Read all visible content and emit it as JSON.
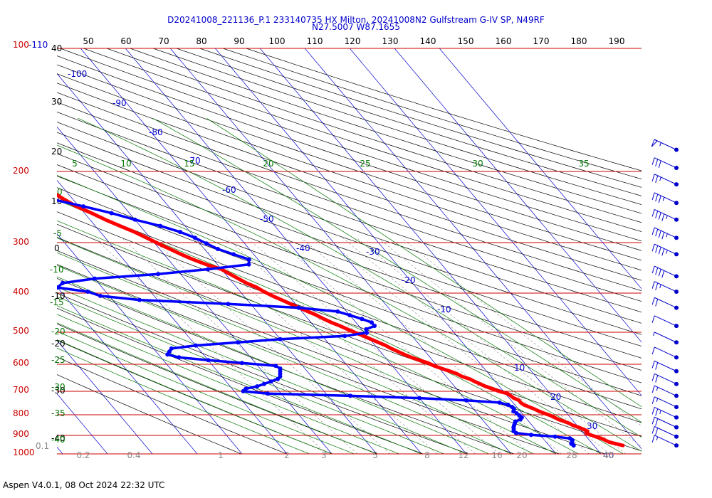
{
  "title_line1": "D20241008_221136_P.1 233140735 HX Milton, 20241008N2 Gulfstream G-IV SP, N49RF",
  "title_line2": "N27.5007 W87.1655",
  "footer": "Aspen V4.0.1, 08 Oct 2024  22:32 UTC",
  "colors": {
    "isobar": "#cc0000",
    "isotherm": "#0000cc",
    "dry_adiabat": "#000000",
    "moist_adiabat": "#007700",
    "mixing_ratio": "#888888",
    "temperature": "#ff0000",
    "dewpoint": "#0000ff",
    "wind": "#0000cc"
  },
  "chart_data": {
    "type": "skew-t",
    "pressure_axis": {
      "unit": "hPa",
      "labels": [
        "100-110",
        "200",
        "300",
        "400",
        "500",
        "600",
        "700",
        "800",
        "900",
        "1000"
      ]
    },
    "top_axis": {
      "labels": [
        "50",
        "60",
        "70",
        "80",
        "90",
        "100",
        "110",
        "120",
        "130",
        "140",
        "150",
        "160",
        "170",
        "180",
        "190"
      ]
    },
    "dry_adiabat_labels": [
      "40",
      "30",
      "20",
      "10",
      "0",
      "-10",
      "-20",
      "-30",
      "-40"
    ],
    "moist_adiabat_labels": [
      "0",
      "-5",
      "-10",
      "-15",
      "-20",
      "-25",
      "-30",
      "-35",
      "-40"
    ],
    "isotherm_labels": [
      "-100",
      "-90",
      "-80",
      "-70",
      "-60",
      "-50",
      "-40",
      "-30",
      "-20",
      "-10",
      "10",
      "20",
      "30",
      "40"
    ],
    "green_top_labels": [
      "5",
      "10",
      "15",
      "20",
      "25",
      "30",
      "35"
    ],
    "mixing_ratio_labels": [
      "0.2",
      "0.4",
      "1",
      "2",
      "3",
      "5",
      "8",
      "12",
      "16",
      "20",
      "28",
      "40"
    ],
    "corner_label": "0.1",
    "series": [
      {
        "name": "Temperature",
        "p": [
          1000,
          990,
          980,
          970,
          960,
          950,
          940,
          930,
          920,
          910,
          900,
          890,
          880,
          870,
          860,
          850,
          840,
          830,
          820,
          810,
          800,
          790,
          780,
          770,
          760,
          750,
          740,
          730,
          720,
          710,
          700,
          690,
          680,
          670,
          660,
          650,
          640,
          630,
          620,
          610,
          600,
          590,
          580,
          570,
          560,
          550,
          540,
          530,
          520,
          510,
          500,
          490,
          480,
          470,
          460,
          450,
          440,
          430,
          420,
          410,
          400,
          390,
          380,
          370,
          360,
          350,
          340,
          330,
          320,
          310,
          300,
          290,
          280,
          270,
          260,
          250,
          240,
          230,
          220,
          210,
          200,
          195,
          190,
          185,
          180,
          175,
          170
        ],
        "t": [
          26.5,
          25.2,
          24.0,
          23.5,
          23.0,
          22.0,
          21.2,
          20.6,
          21.3,
          20.7,
          20.0,
          19.1,
          18.7,
          17.9,
          17.0,
          16.5,
          15.9,
          15.0,
          14.2,
          13.6,
          12.8,
          12.0,
          11.7,
          11.8,
          11.0,
          10.8,
          10.5,
          9.0,
          8.0,
          6.9,
          6.2,
          5.4,
          4.8,
          3.5,
          2.9,
          1.8,
          0.5,
          -0.7,
          -1.5,
          -2.9,
          -4.2,
          -5.2,
          -6.1,
          -7.0,
          -7.7,
          -8.7,
          -9.8,
          -10.8,
          -12.0,
          -13.1,
          -14.2,
          -15.5,
          -16.5,
          -17.4,
          -18.6,
          -19.9,
          -21.1,
          -22.3,
          -23.6,
          -24.7,
          -25.5,
          -27.0,
          -28.0,
          -29.0,
          -30.0,
          -32.5,
          -34.5,
          -36.2,
          -37.7,
          -39.3,
          -40.8,
          -42.4,
          -44.5,
          -46.6,
          -48.4,
          -50.6,
          -52.0,
          -53.2,
          -54.6,
          -55.9,
          -56.2,
          -57.0,
          -58.0,
          -59.0,
          -60.3,
          -61.5,
          -63.5
        ]
      },
      {
        "name": "Dewpoint",
        "p": [
          1000,
          990,
          980,
          970,
          960,
          950,
          940,
          930,
          920,
          910,
          900,
          890,
          880,
          870,
          860,
          850,
          840,
          830,
          820,
          810,
          800,
          790,
          780,
          770,
          760,
          750,
          740,
          730,
          720,
          710,
          700,
          690,
          680,
          670,
          660,
          650,
          640,
          630,
          620,
          610,
          600,
          590,
          580,
          570,
          560,
          550,
          540,
          530,
          520,
          510,
          500,
          490,
          480,
          470,
          460,
          450,
          440,
          430,
          420,
          410,
          400,
          390,
          380,
          370,
          360,
          350,
          340,
          330,
          320,
          310,
          300,
          290,
          280,
          270,
          260,
          250,
          240,
          230,
          220,
          210,
          200,
          195,
          190
        ],
        "t": [
          15.5,
          15.3,
          15.8,
          16.2,
          16.0,
          13.0,
          8.0,
          5.0,
          4.8,
          5.2,
          5.5,
          6.0,
          6.5,
          7.0,
          8.5,
          9.2,
          9.0,
          8.8,
          8.5,
          9.0,
          9.0,
          8.5,
          7.0,
          0.0,
          -10.0,
          -25.0,
          -43.0,
          -48.0,
          -47.0,
          -44.0,
          -42.0,
          -40.0,
          -38.0,
          -37.0,
          -36.5,
          -36.0,
          -35.5,
          -36.0,
          -43.0,
          -50.0,
          -56.0,
          -58.0,
          -57.0,
          -56.0,
          -50.0,
          -40.0,
          -30.0,
          -15.0,
          -9.5,
          -9.0,
          -6.5,
          -6.5,
          -8.0,
          -10.0,
          -12.0,
          -20.0,
          -35.0,
          -54.0,
          -62.0,
          -64.0,
          -70.0,
          -68.0,
          -60.0,
          -45.0,
          -33.0,
          -23.0,
          -22.0,
          -24.5,
          -27.0,
          -28.5,
          -30.0,
          -32.2,
          -35.5,
          -40.0,
          -44.0,
          -49.0,
          -54.5,
          -58.7,
          -62.5,
          -67.0,
          -70.0,
          -71.5,
          -72.5
        ]
      }
    ],
    "wind_barbs": {
      "p": [
        180,
        200,
        220,
        245,
        270,
        300,
        330,
        375,
        410,
        450,
        500,
        550,
        600,
        650,
        700,
        750,
        800,
        850,
        900,
        950,
        1000
      ],
      "speed_kt": [
        55,
        30,
        25,
        35,
        45,
        45,
        45,
        40,
        25,
        20,
        10,
        5,
        10,
        20,
        20,
        15,
        15,
        25,
        20,
        20,
        15
      ]
    }
  }
}
